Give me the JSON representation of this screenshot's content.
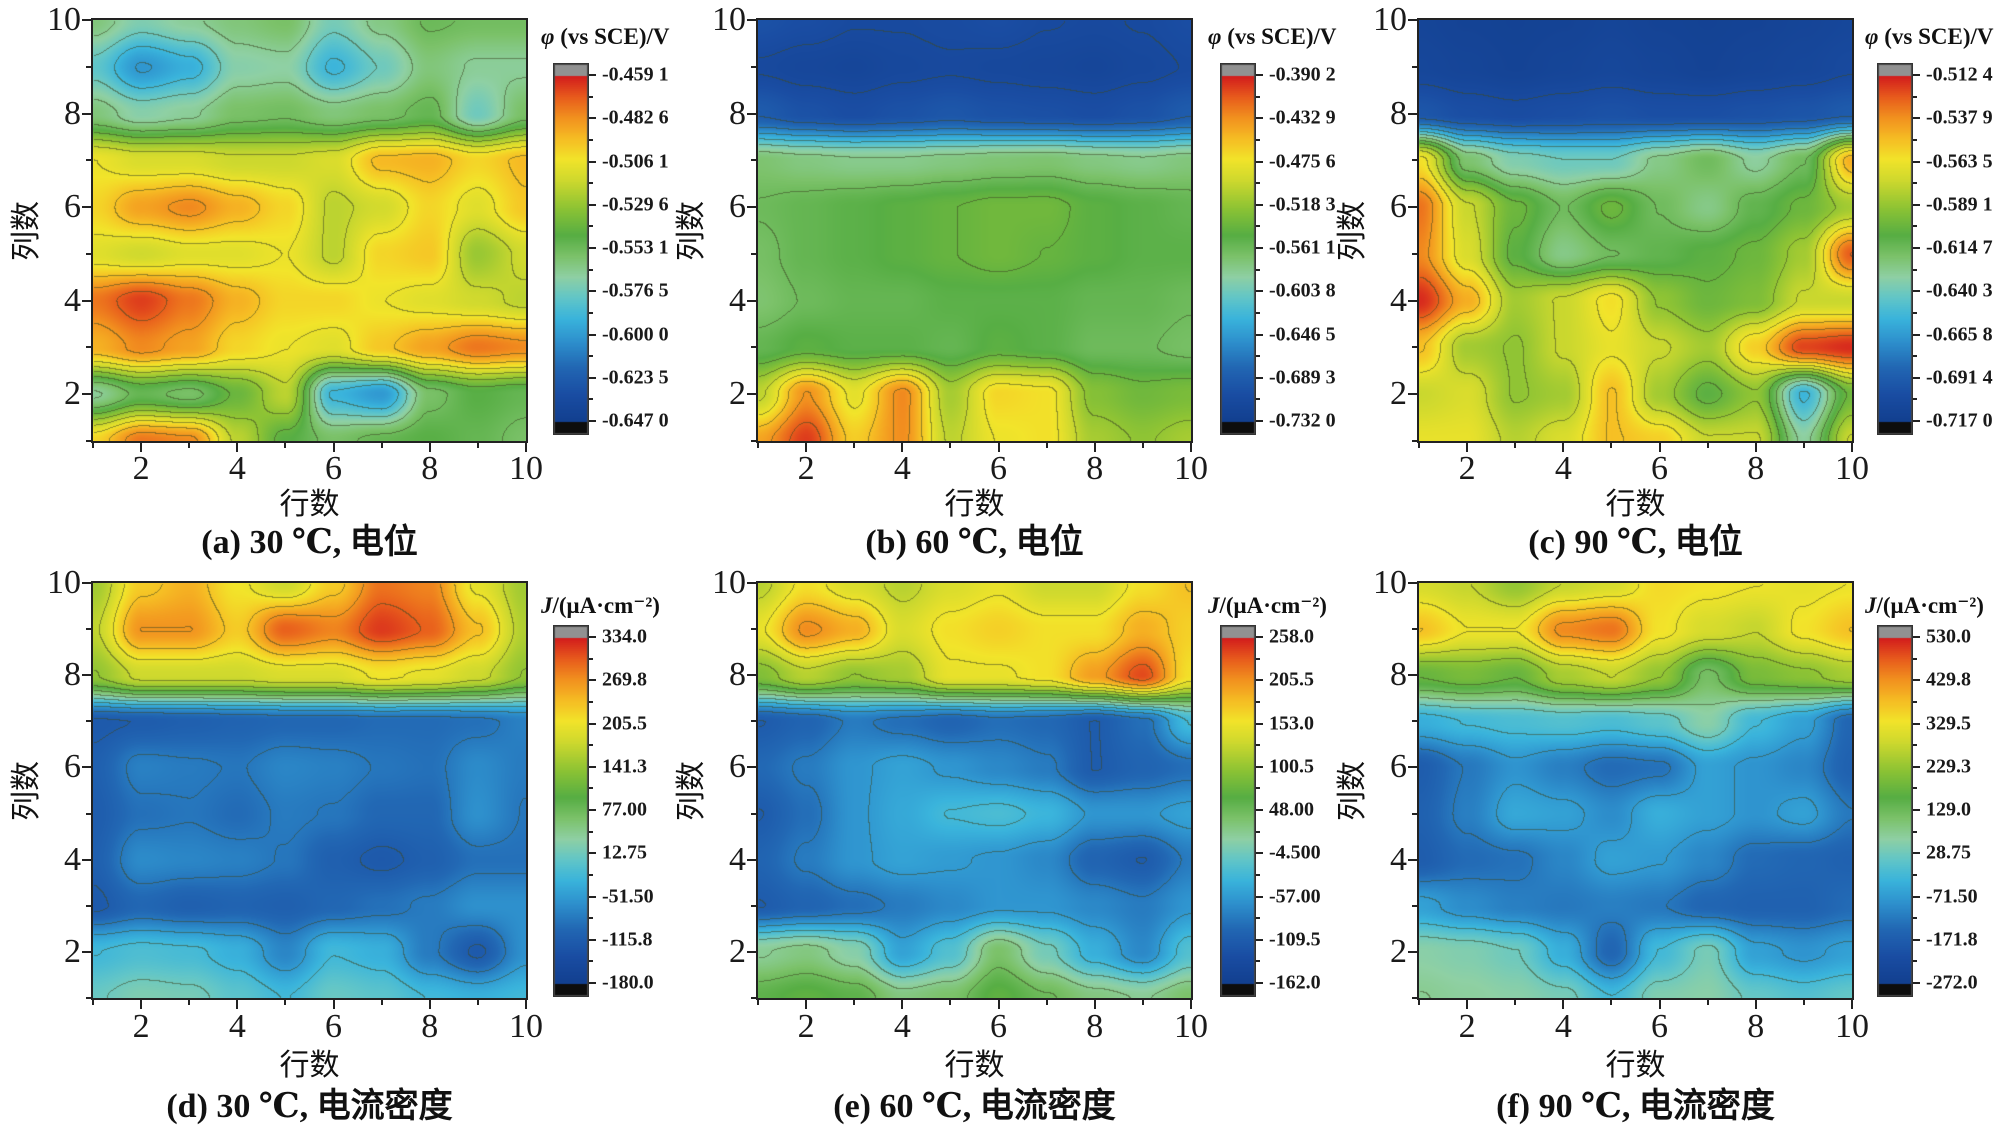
{
  "figure_title": "potential and current density distribution contour maps",
  "accent_colors": {
    "plot_border": "#222222",
    "contour_line": "rgba(62,72,36,0.55)",
    "cap_top": "#919191",
    "cap_bottom": "#0d0d0d"
  },
  "colormap": {
    "stops": [
      [
        0.0,
        "#123f8f"
      ],
      [
        0.08,
        "#1a4da3"
      ],
      [
        0.16,
        "#2268b4"
      ],
      [
        0.24,
        "#2f94cf"
      ],
      [
        0.3,
        "#3ab4dc"
      ],
      [
        0.36,
        "#62c6c8"
      ],
      [
        0.42,
        "#8fd0a4"
      ],
      [
        0.48,
        "#7cc26a"
      ],
      [
        0.54,
        "#57ae44"
      ],
      [
        0.62,
        "#8fc434"
      ],
      [
        0.7,
        "#cfd92e"
      ],
      [
        0.76,
        "#f2e42a"
      ],
      [
        0.82,
        "#f6bd24"
      ],
      [
        0.88,
        "#f2921f"
      ],
      [
        0.94,
        "#e85c1c"
      ],
      [
        1.0,
        "#d31e1d"
      ]
    ]
  },
  "chart_data": [
    {
      "type": "heatmap",
      "id": "a",
      "caption": "(a) 30 ℃, 电位",
      "x_axis_title": "行数",
      "y_axis_title": "列数",
      "x_tick_labels": [
        "2",
        "4",
        "6",
        "8",
        "10"
      ],
      "y_tick_labels": [
        "2",
        "4",
        "6",
        "8",
        "10"
      ],
      "x_range": [
        1,
        10
      ],
      "y_range": [
        1,
        10
      ],
      "colorbar": {
        "symbol": "φ",
        "unit_rest": " (vs SCE)/V",
        "labels": [
          "-0.459 1",
          "-0.482 6",
          "-0.506 1",
          "-0.529 6",
          "-0.553 1",
          "-0.576 5",
          "-0.600 0",
          "-0.623 5",
          "-0.647 0"
        ]
      },
      "vmin": -0.647,
      "vmax": -0.4591,
      "grid_rows_top_to_bottom_y10_to_y1": true,
      "grid": [
        [
          -0.56,
          -0.572,
          -0.566,
          -0.56,
          -0.556,
          -0.574,
          -0.562,
          -0.552,
          -0.554,
          -0.554
        ],
        [
          -0.58,
          -0.601,
          -0.592,
          -0.57,
          -0.568,
          -0.59,
          -0.576,
          -0.56,
          -0.566,
          -0.566
        ],
        [
          -0.56,
          -0.57,
          -0.566,
          -0.556,
          -0.554,
          -0.56,
          -0.556,
          -0.55,
          -0.576,
          -0.556
        ],
        [
          -0.506,
          -0.512,
          -0.512,
          -0.516,
          -0.516,
          -0.512,
          -0.492,
          -0.49,
          -0.5,
          -0.492
        ],
        [
          -0.5,
          -0.486,
          -0.48,
          -0.49,
          -0.5,
          -0.52,
          -0.514,
          -0.5,
          -0.51,
          -0.496
        ],
        [
          -0.51,
          -0.515,
          -0.51,
          -0.51,
          -0.506,
          -0.52,
          -0.5,
          -0.496,
          -0.528,
          -0.515
        ],
        [
          -0.476,
          -0.465,
          -0.476,
          -0.49,
          -0.5,
          -0.5,
          -0.506,
          -0.51,
          -0.515,
          -0.52
        ],
        [
          -0.49,
          -0.48,
          -0.486,
          -0.5,
          -0.506,
          -0.51,
          -0.496,
          -0.486,
          -0.476,
          -0.48
        ],
        [
          -0.566,
          -0.55,
          -0.556,
          -0.54,
          -0.52,
          -0.59,
          -0.6,
          -0.556,
          -0.546,
          -0.55
        ],
        [
          -0.5,
          -0.476,
          -0.48,
          -0.52,
          -0.545,
          -0.556,
          -0.55,
          -0.546,
          -0.55,
          -0.556
        ]
      ]
    },
    {
      "type": "heatmap",
      "id": "b",
      "caption": "(b) 60 ℃, 电位",
      "x_axis_title": "行数",
      "y_axis_title": "列数",
      "x_tick_labels": [
        "2",
        "4",
        "6",
        "8",
        "10"
      ],
      "y_tick_labels": [
        "2",
        "4",
        "6",
        "8",
        "10"
      ],
      "x_range": [
        1,
        10
      ],
      "y_range": [
        1,
        10
      ],
      "colorbar": {
        "symbol": "φ",
        "unit_rest": " (vs SCE)/V",
        "labels": [
          "-0.390 2",
          "-0.432 9",
          "-0.475 6",
          "-0.518 3",
          "-0.561 1",
          "-0.603 8",
          "-0.646 5",
          "-0.689 3",
          "-0.732 0"
        ]
      },
      "vmin": -0.732,
      "vmax": -0.3902,
      "grid_rows_top_to_bottom_y10_to_y1": true,
      "grid": [
        [
          -0.7,
          -0.705,
          -0.71,
          -0.71,
          -0.708,
          -0.705,
          -0.71,
          -0.712,
          -0.71,
          -0.705
        ],
        [
          -0.712,
          -0.716,
          -0.718,
          -0.714,
          -0.712,
          -0.714,
          -0.716,
          -0.718,
          -0.714,
          -0.71
        ],
        [
          -0.69,
          -0.7,
          -0.705,
          -0.7,
          -0.695,
          -0.7,
          -0.702,
          -0.705,
          -0.7,
          -0.69
        ],
        [
          -0.57,
          -0.576,
          -0.58,
          -0.58,
          -0.576,
          -0.572,
          -0.57,
          -0.576,
          -0.58,
          -0.574
        ],
        [
          -0.56,
          -0.555,
          -0.55,
          -0.545,
          -0.54,
          -0.535,
          -0.535,
          -0.545,
          -0.55,
          -0.555
        ],
        [
          -0.565,
          -0.555,
          -0.55,
          -0.545,
          -0.54,
          -0.535,
          -0.54,
          -0.545,
          -0.55,
          -0.55
        ],
        [
          -0.57,
          -0.56,
          -0.555,
          -0.555,
          -0.55,
          -0.55,
          -0.55,
          -0.555,
          -0.555,
          -0.56
        ],
        [
          -0.555,
          -0.545,
          -0.55,
          -0.55,
          -0.555,
          -0.545,
          -0.55,
          -0.56,
          -0.56,
          -0.565
        ],
        [
          -0.5,
          -0.432,
          -0.48,
          -0.428,
          -0.51,
          -0.465,
          -0.47,
          -0.525,
          -0.535,
          -0.53
        ],
        [
          -0.44,
          -0.4,
          -0.46,
          -0.43,
          -0.5,
          -0.475,
          -0.47,
          -0.51,
          -0.52,
          -0.51
        ]
      ]
    },
    {
      "type": "heatmap",
      "id": "c",
      "caption": "(c) 90 ℃, 电位",
      "x_axis_title": "行数",
      "y_axis_title": "列数",
      "x_tick_labels": [
        "2",
        "4",
        "6",
        "8",
        "10"
      ],
      "y_tick_labels": [
        "2",
        "4",
        "6",
        "8",
        "10"
      ],
      "x_range": [
        1,
        10
      ],
      "y_range": [
        1,
        10
      ],
      "colorbar": {
        "symbol": "φ",
        "unit_rest": " (vs SCE)/V",
        "labels": [
          "-0.512 4",
          "-0.537 9",
          "-0.563 5",
          "-0.589 1",
          "-0.614 7",
          "-0.640 3",
          "-0.665 8",
          "-0.691 4",
          "-0.717 0"
        ]
      },
      "vmin": -0.717,
      "vmax": -0.5124,
      "grid_rows_top_to_bottom_y10_to_y1": true,
      "grid": [
        [
          -0.71,
          -0.712,
          -0.713,
          -0.712,
          -0.71,
          -0.712,
          -0.713,
          -0.712,
          -0.71,
          -0.708
        ],
        [
          -0.708,
          -0.71,
          -0.712,
          -0.71,
          -0.708,
          -0.71,
          -0.712,
          -0.71,
          -0.708,
          -0.705
        ],
        [
          -0.695,
          -0.7,
          -0.702,
          -0.7,
          -0.698,
          -0.7,
          -0.7,
          -0.698,
          -0.696,
          -0.692
        ],
        [
          -0.56,
          -0.62,
          -0.635,
          -0.64,
          -0.64,
          -0.625,
          -0.615,
          -0.63,
          -0.615,
          -0.545
        ],
        [
          -0.53,
          -0.575,
          -0.6,
          -0.615,
          -0.6,
          -0.615,
          -0.625,
          -0.61,
          -0.6,
          -0.585
        ],
        [
          -0.535,
          -0.57,
          -0.605,
          -0.625,
          -0.615,
          -0.61,
          -0.605,
          -0.6,
          -0.585,
          -0.525
        ],
        [
          -0.515,
          -0.545,
          -0.585,
          -0.575,
          -0.56,
          -0.59,
          -0.6,
          -0.595,
          -0.575,
          -0.575
        ],
        [
          -0.55,
          -0.585,
          -0.59,
          -0.575,
          -0.565,
          -0.575,
          -0.585,
          -0.555,
          -0.52,
          -0.515
        ],
        [
          -0.575,
          -0.57,
          -0.59,
          -0.585,
          -0.55,
          -0.585,
          -0.605,
          -0.59,
          -0.655,
          -0.6
        ],
        [
          -0.565,
          -0.565,
          -0.58,
          -0.57,
          -0.55,
          -0.555,
          -0.575,
          -0.575,
          -0.63,
          -0.575
        ]
      ]
    },
    {
      "type": "heatmap",
      "id": "d",
      "caption": "(d) 30 ℃, 电流密度",
      "x_axis_title": "行数",
      "y_axis_title": "列数",
      "x_tick_labels": [
        "2",
        "4",
        "6",
        "8",
        "10"
      ],
      "y_tick_labels": [
        "2",
        "4",
        "6",
        "8",
        "10"
      ],
      "x_range": [
        1,
        10
      ],
      "y_range": [
        1,
        10
      ],
      "colorbar": {
        "symbol": "J",
        "unit_rest": "/(μA·cm⁻²)",
        "labels": [
          "334.0",
          "269.8",
          "205.5",
          "141.3",
          "77.00",
          "12.75",
          "-51.50",
          "-115.8",
          "-180.0"
        ]
      },
      "vmin": -180,
      "vmax": 334,
      "grid_rows_top_to_bottom_y10_to_y1": true,
      "grid": [
        [
          150,
          230,
          250,
          210,
          180,
          230,
          290,
          280,
          200,
          150
        ],
        [
          170,
          270,
          270,
          230,
          300,
          280,
          320,
          300,
          240,
          160
        ],
        [
          140,
          180,
          180,
          180,
          190,
          190,
          210,
          200,
          180,
          140
        ],
        [
          -120,
          -115,
          -110,
          -105,
          -100,
          -100,
          -95,
          -95,
          -90,
          -75
        ],
        [
          -110,
          -75,
          -80,
          -85,
          -70,
          -75,
          -85,
          -90,
          -65,
          -80
        ],
        [
          -115,
          -90,
          -85,
          -95,
          -80,
          -85,
          -100,
          -100,
          -60,
          -85
        ],
        [
          -110,
          -65,
          -70,
          -75,
          -85,
          -110,
          -120,
          -110,
          -90,
          -90
        ],
        [
          -120,
          -100,
          -110,
          -105,
          -110,
          -100,
          -90,
          -80,
          -60,
          -60
        ],
        [
          -20,
          -10,
          -15,
          -30,
          -70,
          -20,
          -30,
          -80,
          -120,
          -60
        ],
        [
          10,
          25,
          20,
          0,
          -20,
          10,
          0,
          -20,
          -30,
          -20
        ]
      ]
    },
    {
      "type": "heatmap",
      "id": "e",
      "caption": "(e) 60 ℃, 电流密度",
      "x_axis_title": "行数",
      "y_axis_title": "列数",
      "x_tick_labels": [
        "2",
        "4",
        "6",
        "8",
        "10"
      ],
      "y_tick_labels": [
        "2",
        "4",
        "6",
        "8",
        "10"
      ],
      "x_range": [
        1,
        10
      ],
      "y_range": [
        1,
        10
      ],
      "colorbar": {
        "symbol": "J",
        "unit_rest": "/(μA·cm⁻²)",
        "labels": [
          "258.0",
          "205.5",
          "153.0",
          "100.5",
          "48.00",
          "-4.500",
          "-57.00",
          "-109.5",
          "-162.0"
        ]
      },
      "vmin": -162,
      "vmax": 258,
      "grid_rows_top_to_bottom_y10_to_y1": true,
      "grid": [
        [
          120,
          160,
          140,
          120,
          140,
          150,
          130,
          130,
          160,
          180
        ],
        [
          150,
          210,
          190,
          140,
          160,
          170,
          160,
          160,
          190,
          170
        ],
        [
          90,
          120,
          100,
          110,
          150,
          150,
          160,
          200,
          240,
          160
        ],
        [
          -110,
          -100,
          -80,
          -90,
          -100,
          -90,
          -95,
          -110,
          -90,
          -30
        ],
        [
          -95,
          -80,
          -60,
          -50,
          -60,
          -70,
          -80,
          -110,
          -100,
          -90
        ],
        [
          -110,
          -90,
          -60,
          -45,
          -30,
          -25,
          -35,
          -60,
          -60,
          -50
        ],
        [
          -100,
          -80,
          -60,
          -50,
          -55,
          -60,
          -70,
          -100,
          -110,
          -80
        ],
        [
          -110,
          -100,
          -90,
          -80,
          -70,
          -60,
          -60,
          -70,
          -80,
          -60
        ],
        [
          20,
          30,
          10,
          -50,
          -20,
          40,
          0,
          -40,
          -70,
          -20
        ],
        [
          60,
          70,
          60,
          30,
          40,
          70,
          50,
          30,
          20,
          40
        ]
      ]
    },
    {
      "type": "heatmap",
      "id": "f",
      "caption": "(f) 90 ℃, 电流密度",
      "x_axis_title": "行数",
      "y_axis_title": "列数",
      "x_tick_labels": [
        "2",
        "4",
        "6",
        "8",
        "10"
      ],
      "y_tick_labels": [
        "2",
        "4",
        "6",
        "8",
        "10"
      ],
      "x_range": [
        1,
        10
      ],
      "y_range": [
        1,
        10
      ],
      "colorbar": {
        "symbol": "J",
        "unit_rest": "/(μA·cm⁻²)",
        "labels": [
          "530.0",
          "429.8",
          "329.5",
          "229.3",
          "129.0",
          "28.75",
          "-71.50",
          "-171.8",
          "-272.0"
        ]
      },
      "vmin": -272,
      "vmax": 530,
      "grid_rows_top_to_bottom_y10_to_y1": true,
      "grid": [
        [
          300,
          280,
          230,
          280,
          300,
          350,
          340,
          330,
          320,
          330
        ],
        [
          380,
          330,
          330,
          440,
          460,
          340,
          300,
          280,
          340,
          380
        ],
        [
          180,
          200,
          180,
          250,
          280,
          230,
          120,
          200,
          220,
          250
        ],
        [
          -40,
          -20,
          -10,
          0,
          -10,
          10,
          60,
          -20,
          -60,
          -150
        ],
        [
          -170,
          -120,
          -80,
          -110,
          -140,
          -130,
          -60,
          -80,
          -100,
          -160
        ],
        [
          -160,
          -110,
          -50,
          -60,
          -90,
          -40,
          -60,
          -80,
          -60,
          -120
        ],
        [
          -170,
          -140,
          -130,
          -100,
          -60,
          -70,
          -100,
          -140,
          -150,
          -160
        ],
        [
          -60,
          -90,
          -110,
          -120,
          -110,
          -120,
          -150,
          -160,
          -160,
          -140
        ],
        [
          60,
          50,
          30,
          -40,
          -150,
          -20,
          40,
          -60,
          -80,
          -60
        ],
        [
          80,
          70,
          60,
          40,
          -20,
          50,
          60,
          20,
          0,
          20
        ]
      ]
    }
  ]
}
